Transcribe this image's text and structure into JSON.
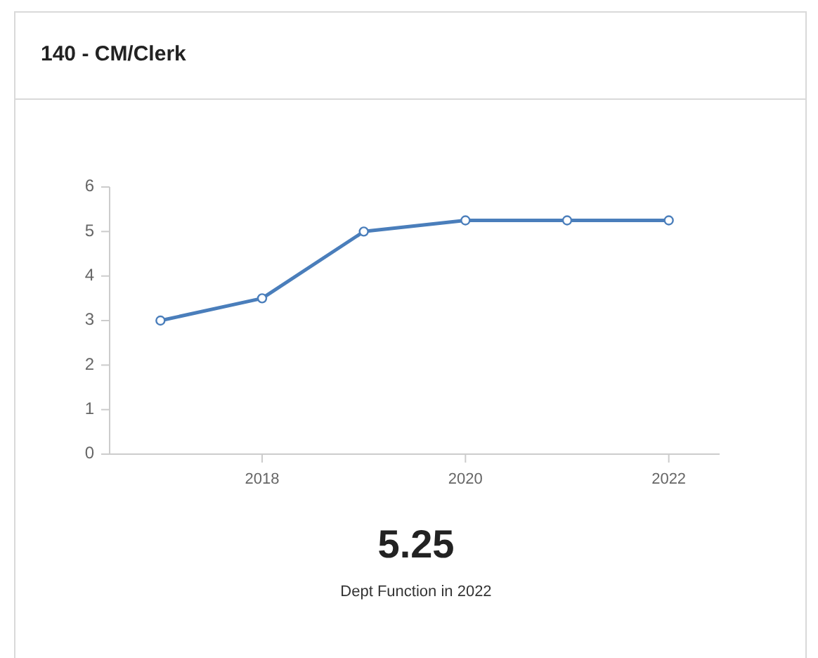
{
  "chart_data": {
    "type": "line",
    "title": "140 - CM/Clerk",
    "x": [
      2017,
      2018,
      2019,
      2020,
      2021,
      2022
    ],
    "series": [
      {
        "color": "#4a7ebb",
        "values": [
          3,
          3.5,
          5,
          5.25,
          5.25,
          5.25
        ]
      }
    ],
    "xlim": [
      2016.5,
      2022.5
    ],
    "xticks": [
      2018,
      2020,
      2022
    ],
    "ylim": [
      0,
      6
    ],
    "yticks": [
      0,
      1,
      2,
      3,
      4,
      5,
      6
    ],
    "grid": false,
    "marker": "circle",
    "line_style": "solid",
    "annotations": [
      "5.25",
      "Dept Function in 2022"
    ]
  }
}
